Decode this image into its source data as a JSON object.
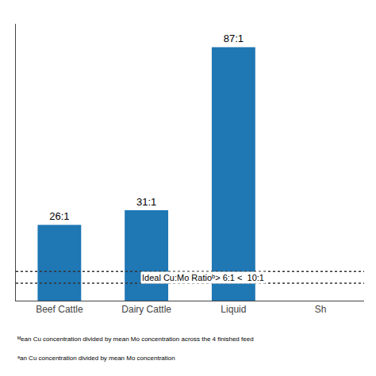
{
  "chart_data": {
    "type": "bar",
    "categories": [
      "Beef Cattle",
      "Dairy Cattle",
      "Liquid",
      "Sh"
    ],
    "values": [
      26,
      31,
      87,
      0
    ],
    "value_labels": [
      "26:1",
      "31:1",
      "87:1",
      null
    ],
    "data_labels": true,
    "ylim": [
      0,
      95
    ],
    "tick_labels": "x",
    "grid": false,
    "ideal_range": {
      "lower": 6,
      "upper": 10,
      "color": "#333333",
      "line_style": "dotted",
      "label": "Ideal Cu:Mo Ratioᵇ> 6:1 <  10:1"
    },
    "captions": [
      "ᴹean Cu concentration divided by mean Mo concentration across the 4 finished feed",
      "ᵃan Cu concentration divided by mean Mo concentration"
    ]
  }
}
